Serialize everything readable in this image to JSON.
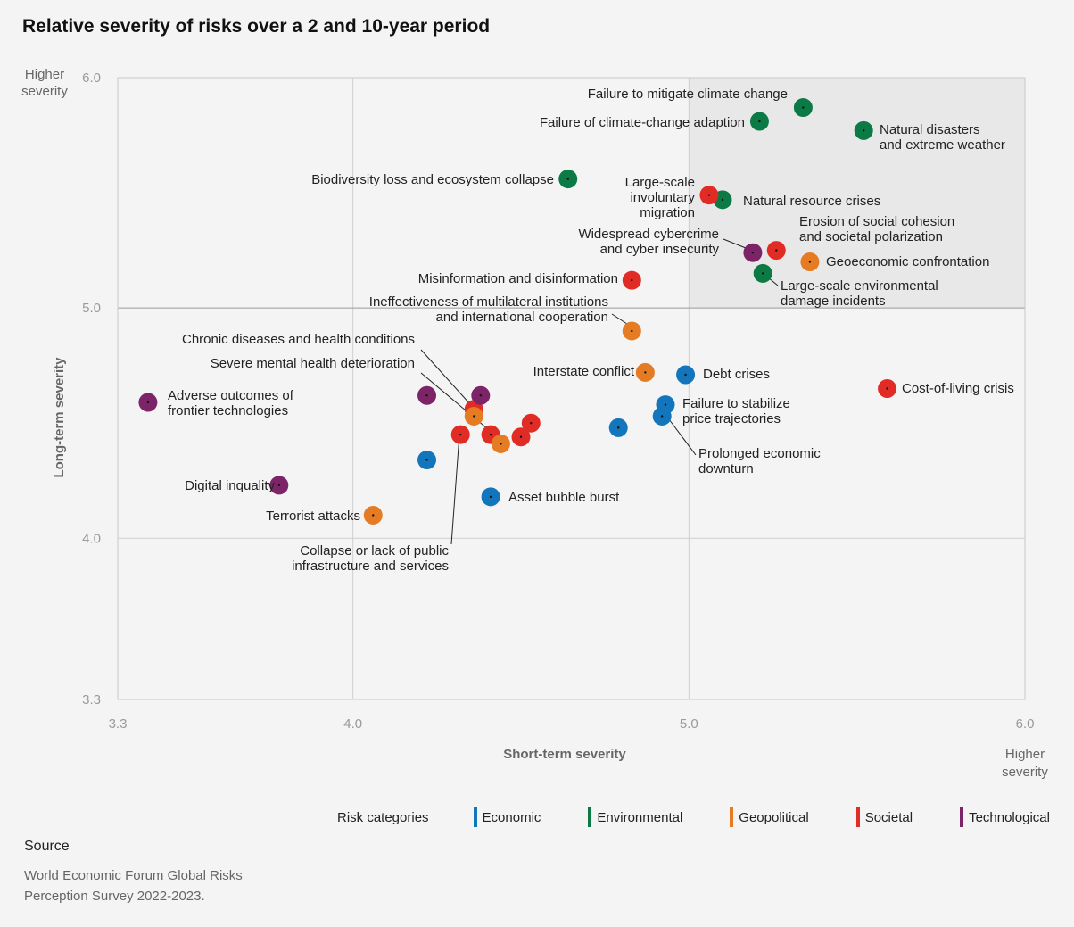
{
  "chart_data": {
    "type": "scatter",
    "title": "Relative severity of risks over a 2 and 10-year period",
    "xlabel": "Short-term severity",
    "ylabel": "Long-term severity",
    "x_high_label": [
      "Higher",
      "severity"
    ],
    "y_high_label": [
      "Higher",
      "severity"
    ],
    "xlim": [
      3.3,
      6.0
    ],
    "ylim": [
      3.3,
      6.0
    ],
    "x_ticks": [
      "3.3",
      "4.0",
      "5.0",
      "6.0"
    ],
    "y_ticks": [
      "3.3",
      "4.0",
      "5.0",
      "6.0"
    ],
    "highlight_quadrant": {
      "x": [
        5.0,
        6.0
      ],
      "y": [
        5.0,
        6.0
      ]
    },
    "grid": true,
    "categories": [
      {
        "key": "economic",
        "name": "Economic",
        "color": "#1375bc"
      },
      {
        "key": "environmental",
        "name": "Environmental",
        "color": "#0b7a45"
      },
      {
        "key": "geopolitical",
        "name": "Geopolitical",
        "color": "#e57c23"
      },
      {
        "key": "societal",
        "name": "Societal",
        "color": "#e12c26"
      },
      {
        "key": "technological",
        "name": "Technological",
        "color": "#7d2468"
      }
    ],
    "points": [
      {
        "x": 5.34,
        "y": 5.87,
        "category": "environmental",
        "label": [
          "Failure to mitigate climate change"
        ]
      },
      {
        "x": 5.21,
        "y": 5.81,
        "category": "environmental",
        "label": [
          "Failure of climate-change adaption"
        ]
      },
      {
        "x": 5.52,
        "y": 5.77,
        "category": "environmental",
        "label": [
          "Natural disasters",
          "and extreme weather"
        ]
      },
      {
        "x": 4.64,
        "y": 5.56,
        "category": "environmental",
        "label": [
          "Biodiversity loss and ecosystem collapse"
        ]
      },
      {
        "x": 5.1,
        "y": 5.47,
        "category": "environmental",
        "label": [
          "Natural resource crises"
        ]
      },
      {
        "x": 5.06,
        "y": 5.49,
        "category": "societal",
        "label": [
          "Large-scale",
          "involuntary",
          "migration"
        ]
      },
      {
        "x": 5.26,
        "y": 5.25,
        "category": "societal",
        "label": [
          "Erosion of social cohesion",
          "and societal polarization"
        ]
      },
      {
        "x": 5.19,
        "y": 5.24,
        "category": "technological",
        "label": [
          "Widespread cybercrime",
          "and cyber insecurity"
        ]
      },
      {
        "x": 5.36,
        "y": 5.2,
        "category": "geopolitical",
        "label": [
          "Geoeconomic confrontation"
        ]
      },
      {
        "x": 5.22,
        "y": 5.15,
        "category": "environmental",
        "label": [
          "Large-scale environmental",
          "damage incidents"
        ]
      },
      {
        "x": 4.83,
        "y": 5.12,
        "category": "societal",
        "label": [
          "Misinformation and disinformation"
        ]
      },
      {
        "x": 4.83,
        "y": 4.9,
        "category": "geopolitical",
        "label": [
          "Ineffectiveness of multilateral institutions",
          "and international cooperation"
        ]
      },
      {
        "x": 4.87,
        "y": 4.72,
        "category": "geopolitical",
        "label": [
          "Interstate conflict"
        ]
      },
      {
        "x": 4.99,
        "y": 4.71,
        "category": "economic",
        "label": [
          "Debt crises"
        ]
      },
      {
        "x": 5.59,
        "y": 4.65,
        "category": "societal",
        "label": [
          "Cost-of-living crisis"
        ]
      },
      {
        "x": 4.93,
        "y": 4.58,
        "category": "economic",
        "label": [
          "Failure to stabilize",
          "price trajectories"
        ]
      },
      {
        "x": 4.92,
        "y": 4.53,
        "category": "economic",
        "label": [
          "Prolonged economic",
          "downturn"
        ]
      },
      {
        "x": 3.39,
        "y": 4.59,
        "category": "technological",
        "label": [
          "Adverse outcomes of",
          "frontier technologies"
        ]
      },
      {
        "x": 4.36,
        "y": 4.56,
        "category": "societal",
        "label": [
          "Chronic diseases and health conditions"
        ]
      },
      {
        "x": 4.41,
        "y": 4.45,
        "category": "societal",
        "label": [
          "Severe mental health deterioration"
        ]
      },
      {
        "x": 4.32,
        "y": 4.45,
        "category": "societal",
        "label": [
          "Collapse or lack of public",
          "infrastructure and services"
        ]
      },
      {
        "x": 4.79,
        "y": 4.48,
        "category": "economic",
        "label": []
      },
      {
        "x": 4.22,
        "y": 4.34,
        "category": "economic",
        "label": []
      },
      {
        "x": 4.41,
        "y": 4.18,
        "category": "economic",
        "label": [
          "Asset bubble burst"
        ]
      },
      {
        "x": 3.78,
        "y": 4.23,
        "category": "technological",
        "label": [
          "Digital inquality"
        ]
      },
      {
        "x": 4.06,
        "y": 4.1,
        "category": "geopolitical",
        "label": [
          "Terrorist attacks"
        ]
      },
      {
        "x": 4.22,
        "y": 4.62,
        "category": "technological",
        "label": []
      },
      {
        "x": 4.38,
        "y": 4.62,
        "category": "technological",
        "label": []
      },
      {
        "x": 4.36,
        "y": 4.53,
        "category": "geopolitical",
        "label": []
      },
      {
        "x": 4.44,
        "y": 4.41,
        "category": "geopolitical",
        "label": []
      },
      {
        "x": 4.5,
        "y": 4.44,
        "category": "societal",
        "label": []
      },
      {
        "x": 4.53,
        "y": 4.5,
        "category": "societal",
        "label": []
      }
    ]
  },
  "legend": {
    "title": "Risk categories",
    "items": [
      {
        "name": "Economic",
        "color": "#1375bc"
      },
      {
        "name": "Environmental",
        "color": "#0b7a45"
      },
      {
        "name": "Geopolitical",
        "color": "#e57c23"
      },
      {
        "name": "Societal",
        "color": "#e12c26"
      },
      {
        "name": "Technological",
        "color": "#7d2468"
      }
    ]
  },
  "source": {
    "label": "Source",
    "text": "World Economic Forum Global Risks Perception Survey 2022-2023."
  }
}
